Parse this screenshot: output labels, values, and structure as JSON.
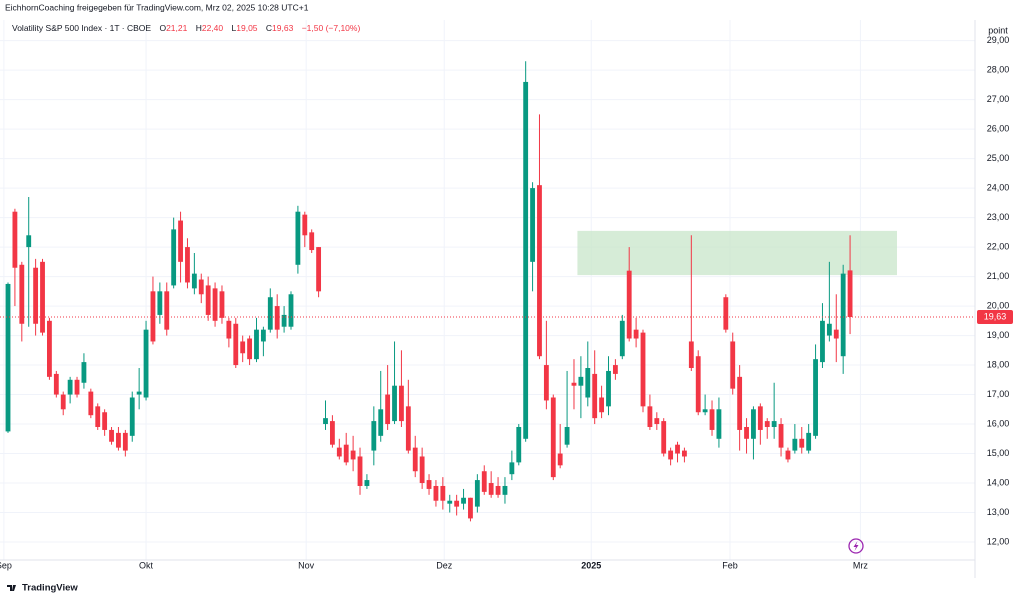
{
  "header": "EichhornCoaching freigegeben für TradingView.com, Mrz 02, 2025 10:28 UTC+1",
  "legend": {
    "symbol": "Volatility S&P 500 Index · 1T · CBOE",
    "fields": [
      {
        "key": "O",
        "text": "21,21"
      },
      {
        "key": "H",
        "text": "22,40"
      },
      {
        "key": "L",
        "text": "19,05"
      },
      {
        "key": "C",
        "text": "19,63"
      }
    ],
    "change": "−1,50 (−7,10%)"
  },
  "axis_unit": "point",
  "footer": "TradingView",
  "chart_data": {
    "type": "candlestick",
    "up_color": "#089981",
    "down_color": "#f23645",
    "open": [
      15.75,
      23.2,
      21.4,
      22.0,
      21.3,
      21.5,
      19.5,
      17.7,
      17.0,
      17.0,
      17.5,
      17.4,
      17.1,
      16.6,
      16.4,
      15.8,
      15.7,
      15.7,
      15.6,
      17.0,
      16.9,
      20.5,
      19.7,
      20.5,
      20.7,
      22.9,
      22.0,
      20.6,
      20.9,
      20.7,
      20.6,
      20.5,
      19.5,
      19.4,
      18.8,
      18.9,
      18.2,
      18.8,
      19.2,
      20.0,
      19.3,
      19.3,
      21.4,
      23.1,
      22.5,
      22.0,
      16.0,
      16.1,
      15.2,
      15.3,
      15.1,
      14.9,
      13.9,
      15.1,
      15.6,
      17.0,
      16.1,
      17.3,
      16.6,
      15.2,
      14.9,
      14.1,
      13.9,
      13.9,
      13.3,
      13.4,
      13.3,
      13.5,
      13.2,
      14.4,
      14.0,
      13.9,
      13.6,
      14.3,
      14.7,
      15.5,
      21.5,
      24.1,
      18.0,
      16.9,
      15.0,
      15.3,
      17.4,
      17.3,
      16.9,
      17.7,
      16.9,
      16.6,
      18.0,
      18.3,
      21.2,
      19.2,
      19.1,
      16.6,
      16.2,
      16.1,
      15.1,
      15.3,
      15.1,
      18.8,
      18.3,
      16.4,
      16.5,
      15.5,
      20.3,
      18.8,
      17.6,
      15.9,
      15.5,
      16.6,
      16.1,
      15.9,
      16.0,
      15.1,
      15.1,
      15.5,
      15.1,
      15.6,
      18.1,
      19.0,
      19.2,
      18.3,
      21.21
    ],
    "high": [
      20.8,
      23.3,
      21.5,
      23.7,
      21.6,
      21.6,
      19.6,
      17.8,
      17.1,
      17.6,
      17.6,
      18.4,
      17.2,
      16.7,
      16.5,
      15.9,
      15.9,
      15.8,
      17.1,
      17.9,
      19.5,
      21.0,
      20.8,
      20.8,
      23.0,
      23.2,
      22.3,
      21.8,
      21.1,
      21.0,
      20.8,
      20.7,
      19.6,
      19.6,
      19.0,
      19.0,
      19.6,
      19.3,
      20.6,
      20.4,
      20.0,
      20.5,
      23.4,
      23.2,
      22.6,
      22.0,
      16.8,
      16.3,
      15.5,
      15.7,
      15.6,
      15.2,
      14.3,
      16.6,
      17.8,
      18.0,
      18.8,
      18.5,
      17.5,
      15.6,
      15.2,
      14.3,
      14.1,
      14.2,
      13.6,
      13.6,
      13.8,
      13.5,
      14.3,
      14.6,
      14.4,
      14.2,
      14.2,
      15.1,
      16.0,
      28.3,
      24.2,
      26.5,
      19.5,
      17.0,
      16.0,
      17.8,
      18.2,
      18.3,
      18.8,
      18.5,
      17.3,
      18.3,
      18.2,
      19.7,
      22.0,
      19.6,
      19.2,
      17.0,
      16.4,
      16.2,
      15.2,
      15.4,
      15.2,
      22.4,
      18.5,
      17.0,
      16.8,
      16.9,
      20.4,
      19.1,
      18.0,
      16.2,
      16.6,
      16.7,
      16.2,
      17.4,
      16.2,
      15.2,
      16.0,
      15.9,
      16.0,
      18.7,
      20.1,
      21.5,
      20.4,
      21.4,
      22.4
    ],
    "low": [
      15.7,
      20.0,
      18.8,
      19.3,
      19.0,
      19.0,
      17.5,
      16.9,
      16.3,
      16.7,
      16.9,
      17.2,
      16.2,
      15.8,
      15.6,
      15.3,
      15.1,
      14.9,
      15.4,
      16.5,
      16.8,
      18.7,
      19.4,
      19.0,
      20.6,
      20.8,
      20.6,
      20.4,
      20.1,
      19.5,
      19.3,
      19.4,
      18.6,
      17.9,
      18.1,
      18.0,
      18.1,
      18.3,
      19.1,
      18.9,
      19.1,
      19.2,
      21.1,
      22.0,
      21.8,
      20.3,
      15.8,
      15.2,
      14.8,
      14.6,
      14.4,
      13.6,
      13.8,
      14.6,
      15.4,
      15.8,
      16.0,
      15.9,
      15.0,
      14.2,
      13.8,
      13.6,
      13.2,
      13.1,
      13.0,
      12.9,
      13.1,
      12.7,
      13.0,
      13.6,
      13.5,
      13.5,
      13.3,
      14.1,
      14.6,
      15.4,
      20.5,
      18.2,
      16.5,
      14.1,
      14.5,
      15.2,
      16.5,
      16.2,
      16.6,
      16.0,
      16.2,
      16.3,
      17.5,
      18.2,
      18.8,
      18.6,
      16.4,
      15.8,
      15.8,
      14.9,
      14.6,
      14.7,
      14.7,
      17.8,
      16.3,
      16.3,
      15.6,
      15.2,
      19.1,
      17.0,
      15.1,
      15.0,
      14.8,
      15.3,
      15.5,
      15.5,
      14.9,
      14.7,
      15.0,
      15.0,
      15.0,
      15.5,
      17.9,
      18.8,
      18.1,
      17.7,
      19.05
    ],
    "close": [
      20.75,
      21.3,
      19.4,
      22.4,
      19.4,
      19.1,
      17.6,
      17.0,
      16.5,
      17.5,
      17.0,
      18.1,
      16.3,
      15.9,
      15.8,
      15.4,
      15.2,
      15.1,
      16.9,
      17.1,
      19.2,
      18.8,
      20.5,
      19.2,
      22.6,
      21.5,
      20.8,
      21.1,
      20.4,
      19.7,
      19.5,
      19.6,
      18.9,
      18.0,
      18.4,
      18.2,
      19.2,
      19.2,
      20.3,
      19.2,
      19.7,
      20.4,
      23.2,
      22.4,
      21.9,
      20.5,
      16.2,
      15.3,
      14.9,
      14.7,
      14.8,
      13.9,
      14.1,
      16.1,
      16.5,
      16.0,
      17.3,
      16.1,
      15.1,
      14.4,
      14.0,
      13.8,
      13.4,
      13.4,
      13.4,
      13.2,
      13.5,
      12.8,
      14.1,
      13.7,
      13.6,
      13.6,
      13.9,
      14.7,
      15.9,
      27.6,
      24.0,
      18.3,
      16.8,
      14.2,
      14.6,
      15.9,
      17.3,
      17.6,
      17.9,
      16.2,
      16.4,
      17.8,
      17.7,
      19.5,
      18.9,
      18.9,
      16.6,
      15.9,
      16.0,
      15.0,
      14.8,
      15.0,
      14.9,
      17.9,
      16.4,
      16.5,
      15.8,
      16.5,
      19.2,
      17.2,
      15.8,
      15.5,
      16.5,
      15.8,
      15.9,
      16.1,
      15.2,
      14.8,
      15.5,
      15.2,
      15.7,
      18.2,
      19.5,
      19.4,
      18.9,
      21.1,
      19.63
    ],
    "last_price": {
      "value": 19.63,
      "label": "19,63",
      "color": "#f23645"
    },
    "zone": {
      "ylim": [
        21.05,
        22.55
      ],
      "xlim": [
        82.5,
        128.8
      ],
      "color": "#c8e6c9"
    },
    "xlim": [
      -1.16,
      140.1
    ],
    "xticks": [
      {
        "value": -0.6,
        "label": "Sep"
      },
      {
        "value": 20,
        "label": "Okt"
      },
      {
        "value": 43.2,
        "label": "Nov"
      },
      {
        "value": 63.2,
        "label": "Dez"
      },
      {
        "value": 84.5,
        "label": "2025"
      },
      {
        "value": 104.6,
        "label": "Feb"
      },
      {
        "value": 123.5,
        "label": "Mrz"
      }
    ],
    "ylim": [
      11.39,
      29.7
    ],
    "yticks": [
      {
        "value": 12,
        "label": "12,00"
      },
      {
        "value": 13,
        "label": "13,00"
      },
      {
        "value": 14,
        "label": "14,00"
      },
      {
        "value": 15,
        "label": "15,00"
      },
      {
        "value": 16,
        "label": "16,00"
      },
      {
        "value": 17,
        "label": "17,00"
      },
      {
        "value": 18,
        "label": "18,00"
      },
      {
        "value": 19,
        "label": "19,00"
      },
      {
        "value": 20,
        "label": "20,00"
      },
      {
        "value": 21,
        "label": "21,00"
      },
      {
        "value": 22,
        "label": "22,00"
      },
      {
        "value": 23,
        "label": "23,00"
      },
      {
        "value": 24,
        "label": "24,00"
      },
      {
        "value": 25,
        "label": "25,00"
      },
      {
        "value": 26,
        "label": "26,00"
      },
      {
        "value": 27,
        "label": "27,00"
      },
      {
        "value": 28,
        "label": "28,00"
      },
      {
        "value": 29,
        "label": "29,00"
      }
    ],
    "grid": true
  }
}
